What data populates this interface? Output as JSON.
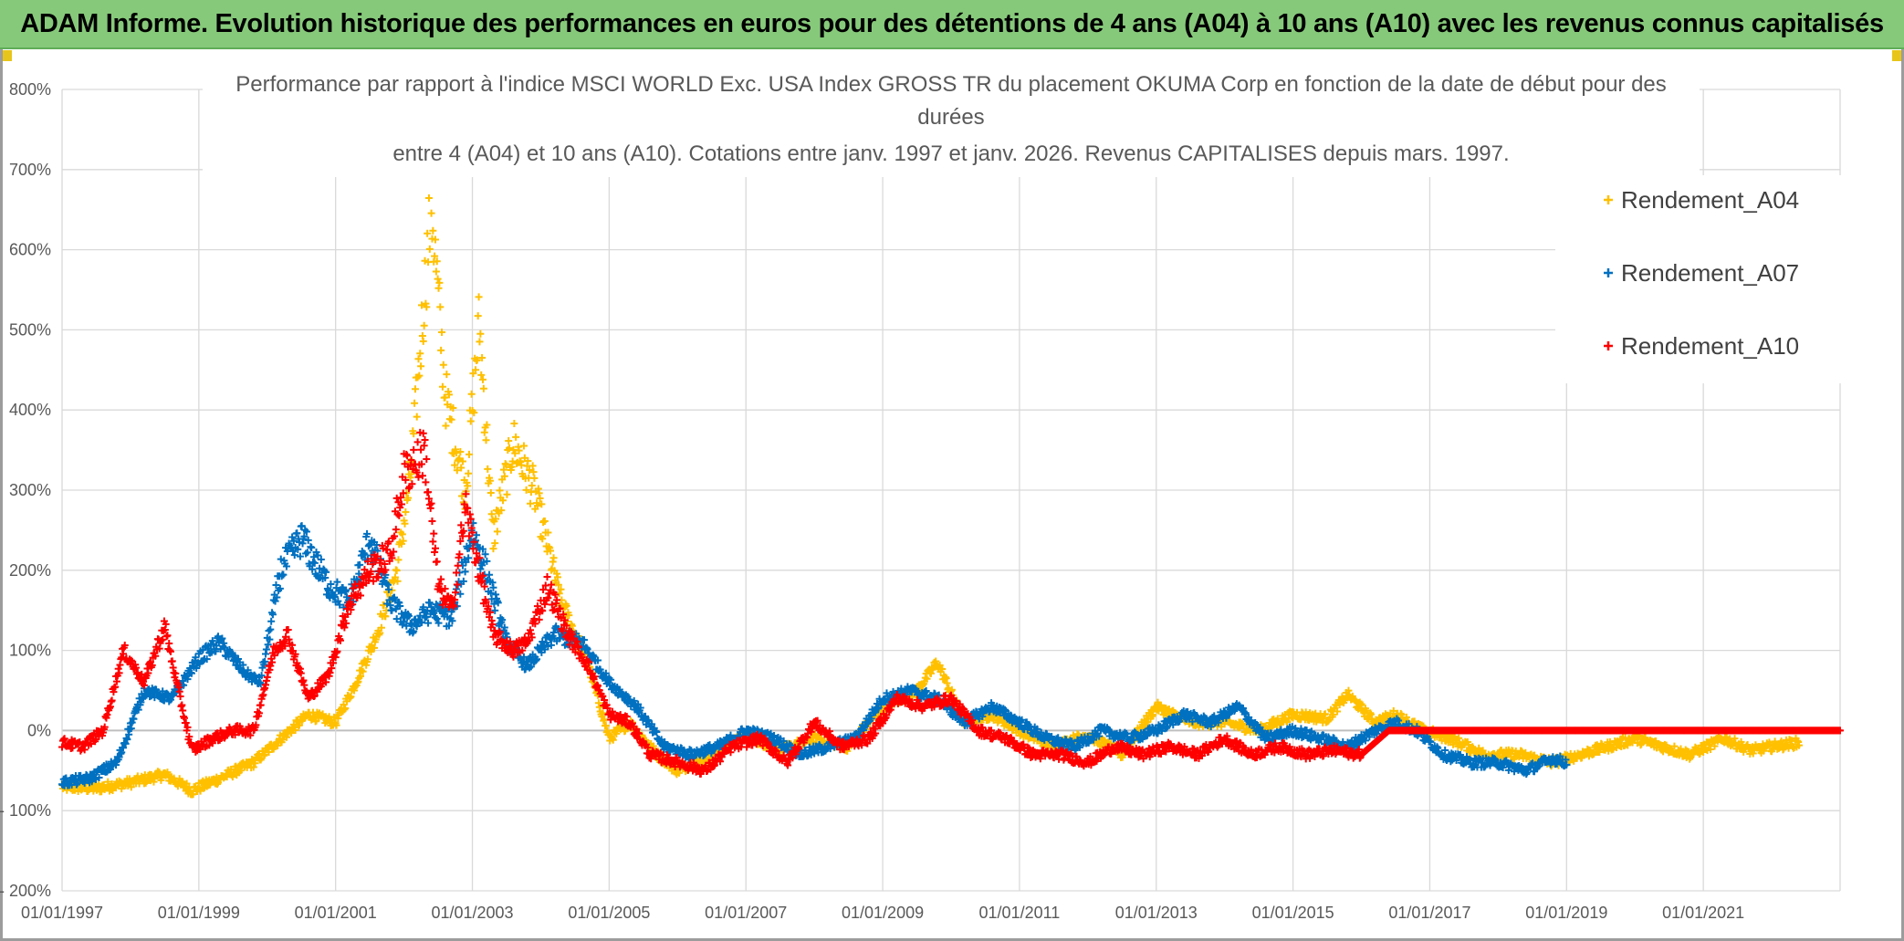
{
  "banner": {
    "title": "ADAM Informe. Evolution historique des performances en euros pour des détentions de 4 ans (A04) à 10 ans (A10) avec les revenus connus capitalisés"
  },
  "colors": {
    "banner_bg": "#86c97a",
    "A04": "#ffc000",
    "A07": "#0070c0",
    "A10": "#ff0000",
    "grid": "#d9d9d9"
  },
  "chart_data": {
    "type": "scatter",
    "title_lines": [
      "Performance par rapport à l'indice MSCI WORLD Exc. USA Index GROSS TR  du placement OKUMA Corp en fonction de la date de début pour des",
      "durées",
      "entre 4 (A04) et 10 ans (A10). Cotations entre janv. 1997 et janv. 2026. Revenus CAPITALISES depuis mars. 1997."
    ],
    "xlabel": "",
    "ylabel": "",
    "xlim": [
      1997.0,
      2023.0
    ],
    "ylim": [
      -200,
      800
    ],
    "y_ticks": [
      800,
      700,
      600,
      500,
      400,
      300,
      200,
      100,
      0,
      -100,
      -200
    ],
    "y_tick_labels": [
      "800%",
      "700%",
      "600%",
      "500%",
      "400%",
      "300%",
      "200%",
      "100%",
      "0%",
      "- 100%",
      "- 200%"
    ],
    "x_ticks": [
      1997,
      1999,
      2001,
      2003,
      2005,
      2007,
      2009,
      2011,
      2013,
      2015,
      2017,
      2019,
      2021
    ],
    "x_tick_labels": [
      "01/01/1997",
      "01/01/1999",
      "01/01/2001",
      "01/01/2003",
      "01/01/2005",
      "01/01/2007",
      "01/01/2009",
      "01/01/2011",
      "01/01/2013",
      "01/01/2015",
      "01/01/2017",
      "01/01/2019",
      "01/01/2021"
    ],
    "grid": true,
    "legend_position": "top-right",
    "marker": "+",
    "series": [
      {
        "name": "Rendement_A04",
        "color": "#ffc000",
        "x": [
          1997.0,
          1997.5,
          1998.0,
          1998.5,
          1998.9,
          1999.3,
          1999.8,
          2000.2,
          2000.6,
          2001.0,
          2001.3,
          2001.6,
          2001.9,
          2002.1,
          2002.4,
          2002.6,
          2002.9,
          2003.1,
          2003.3,
          2003.6,
          2003.9,
          2004.3,
          2004.7,
          2005.0,
          2005.3,
          2005.7,
          2006.0,
          2006.5,
          2007.0,
          2007.5,
          2008.0,
          2008.5,
          2009.0,
          2009.5,
          2009.8,
          2010.2,
          2010.6,
          2011.0,
          2011.5,
          2012.0,
          2012.5,
          2013.0,
          2013.5,
          2014.0,
          2014.5,
          2015.0,
          2015.5,
          2015.8,
          2016.2,
          2016.5,
          2016.9,
          2017.3,
          2017.8,
          2018.3,
          2018.8,
          2019.2,
          2019.6,
          2020.0,
          2020.4,
          2020.8,
          2021.3,
          2021.7,
          2022.0,
          2022.4
        ],
        "y": [
          -70,
          -72,
          -65,
          -55,
          -75,
          -60,
          -40,
          -10,
          20,
          10,
          60,
          120,
          200,
          320,
          660,
          420,
          300,
          510,
          240,
          360,
          300,
          160,
          80,
          -10,
          10,
          -30,
          -50,
          -30,
          -5,
          -25,
          -10,
          -20,
          30,
          50,
          85,
          10,
          20,
          0,
          -20,
          -5,
          -30,
          30,
          10,
          10,
          0,
          20,
          15,
          45,
          10,
          20,
          0,
          -10,
          -30,
          -30,
          -40,
          -30,
          -20,
          -10,
          -20,
          -30,
          -10,
          -25,
          -20,
          -15
        ]
      },
      {
        "name": "Rendement_A07",
        "color": "#0070c0",
        "x": [
          1997.0,
          1997.4,
          1997.8,
          1998.2,
          1998.6,
          1999.0,
          1999.3,
          1999.7,
          1999.9,
          2000.2,
          2000.5,
          2000.9,
          2001.2,
          2001.5,
          2001.8,
          2002.1,
          2002.4,
          2002.7,
          2003.0,
          2003.2,
          2003.5,
          2003.8,
          2004.2,
          2004.6,
          2005.0,
          2005.4,
          2005.8,
          2006.2,
          2006.6,
          2007.0,
          2007.4,
          2007.8,
          2008.2,
          2008.6,
          2009.0,
          2009.4,
          2009.8,
          2010.2,
          2010.6,
          2011.0,
          2011.4,
          2011.8,
          2012.2,
          2012.6,
          2013.0,
          2013.4,
          2013.8,
          2014.2,
          2014.6,
          2015.0,
          2015.4,
          2015.8,
          2016.2,
          2016.5,
          2016.8,
          2017.2,
          2017.6,
          2018.0,
          2018.4,
          2018.8,
          2019.0
        ],
        "y": [
          -65,
          -60,
          -40,
          50,
          40,
          90,
          110,
          70,
          60,
          200,
          240,
          180,
          160,
          240,
          160,
          130,
          150,
          140,
          250,
          200,
          110,
          80,
          120,
          110,
          60,
          30,
          -20,
          -30,
          -20,
          0,
          -10,
          -30,
          -20,
          -10,
          40,
          50,
          40,
          10,
          30,
          10,
          -10,
          -20,
          0,
          -10,
          0,
          20,
          10,
          30,
          -10,
          0,
          -10,
          -20,
          0,
          10,
          0,
          -30,
          -40,
          -40,
          -50,
          -35,
          -40
        ]
      },
      {
        "name": "Rendement_A10",
        "color": "#ff0000",
        "x": [
          1997.0,
          1997.3,
          1997.6,
          1997.9,
          1998.2,
          1998.5,
          1998.7,
          1998.9,
          1999.2,
          1999.5,
          1999.8,
          2000.1,
          2000.3,
          2000.6,
          2000.9,
          2001.2,
          2001.5,
          2001.8,
          2002.0,
          2002.3,
          2002.5,
          2002.7,
          2002.9,
          2003.1,
          2003.3,
          2003.6,
          2003.8,
          2004.1,
          2004.4,
          2004.7,
          2005.0,
          2005.3,
          2005.6,
          2006.0,
          2006.4,
          2006.8,
          2007.2,
          2007.6,
          2008.0,
          2008.4,
          2008.8,
          2009.2,
          2009.6,
          2010.0,
          2010.4,
          2010.8,
          2011.2,
          2011.6,
          2012.0,
          2012.4,
          2012.8,
          2013.2,
          2013.6,
          2014.0,
          2014.4,
          2014.8,
          2015.2,
          2015.6,
          2016.0,
          2016.4,
          2017.0,
          2018.0,
          2019.0,
          2020.0,
          2021.0,
          2022.0,
          2023.0
        ],
        "y": [
          -15,
          -20,
          0,
          100,
          60,
          130,
          50,
          -25,
          -10,
          0,
          0,
          100,
          120,
          40,
          70,
          160,
          200,
          220,
          320,
          350,
          180,
          150,
          280,
          200,
          120,
          100,
          110,
          180,
          120,
          80,
          20,
          10,
          -30,
          -40,
          -50,
          -20,
          -10,
          -40,
          10,
          -20,
          -10,
          40,
          30,
          40,
          0,
          -10,
          -30,
          -30,
          -40,
          -20,
          -30,
          -20,
          -30,
          -10,
          -30,
          -20,
          -30,
          -25,
          -30,
          0,
          0,
          0,
          0,
          0,
          0,
          0,
          0
        ]
      }
    ]
  }
}
